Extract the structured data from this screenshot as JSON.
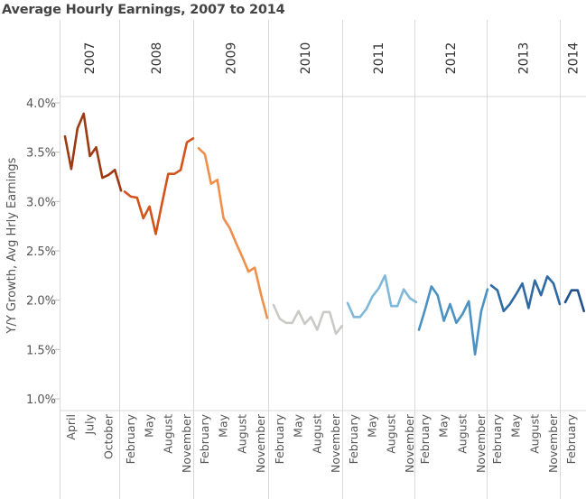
{
  "title": "Average Hourly Earnings, 2007 to 2014",
  "chart_data": {
    "type": "line",
    "title": "Average Hourly Earnings, 2007 to 2014",
    "ylabel": "Y/Y Growth, Avg Hrly Earnings",
    "xlabel": "",
    "ylim": [
      1.0,
      4.0
    ],
    "y_ticks": [
      "4.0%",
      "3.5%",
      "3.0%",
      "2.5%",
      "2.0%",
      "1.5%",
      "1.0%"
    ],
    "grid": false,
    "panels": [
      {
        "year": "2007",
        "month_labels": [
          "April",
          "July",
          "October"
        ],
        "color": "#9c3a14",
        "months": [
          "Mar",
          "Apr",
          "May",
          "Jun",
          "Jul",
          "Aug",
          "Sep",
          "Oct",
          "Nov",
          "Dec"
        ],
        "values": [
          3.66,
          3.33,
          3.74,
          3.89,
          3.46,
          3.55,
          3.24,
          3.27,
          3.32,
          3.11
        ]
      },
      {
        "year": "2008",
        "month_labels": [
          "February",
          "May",
          "August",
          "November"
        ],
        "color": "#d2531b",
        "months": [
          "Jan",
          "Feb",
          "Mar",
          "Apr",
          "May",
          "Jun",
          "Jul",
          "Aug",
          "Sep",
          "Oct",
          "Nov",
          "Dec"
        ],
        "values": [
          3.1,
          3.05,
          3.04,
          2.83,
          2.95,
          2.67,
          2.98,
          3.28,
          3.28,
          3.32,
          3.6,
          3.64
        ]
      },
      {
        "year": "2009",
        "month_labels": [
          "February",
          "May",
          "August",
          "November"
        ],
        "color": "#ef8f4b",
        "months": [
          "Jan",
          "Feb",
          "Mar",
          "Apr",
          "May",
          "Jun",
          "Jul",
          "Aug",
          "Sep",
          "Oct",
          "Nov",
          "Dec"
        ],
        "values": [
          3.54,
          3.48,
          3.18,
          3.22,
          2.83,
          2.73,
          2.58,
          2.44,
          2.29,
          2.33,
          2.06,
          1.82
        ]
      },
      {
        "year": "2010",
        "month_labels": [
          "February",
          "May",
          "August",
          "November"
        ],
        "color": "#c9c9c6",
        "months": [
          "Jan",
          "Feb",
          "Mar",
          "Apr",
          "May",
          "Jun",
          "Jul",
          "Aug",
          "Sep",
          "Oct",
          "Nov",
          "Dec"
        ],
        "values": [
          1.95,
          1.81,
          1.77,
          1.77,
          1.89,
          1.76,
          1.83,
          1.7,
          1.88,
          1.88,
          1.66,
          1.74
        ]
      },
      {
        "year": "2011",
        "month_labels": [
          "February",
          "May",
          "August",
          "November"
        ],
        "color": "#7fb8d8",
        "months": [
          "Jan",
          "Feb",
          "Mar",
          "Apr",
          "May",
          "Jun",
          "Jul",
          "Aug",
          "Sep",
          "Oct",
          "Nov",
          "Dec"
        ],
        "values": [
          1.97,
          1.83,
          1.83,
          1.91,
          2.04,
          2.12,
          2.25,
          1.94,
          1.94,
          2.11,
          2.02,
          1.98
        ]
      },
      {
        "year": "2012",
        "month_labels": [
          "February",
          "May",
          "August",
          "November"
        ],
        "color": "#4b92c3",
        "months": [
          "Jan",
          "Feb",
          "Mar",
          "Apr",
          "May",
          "Jun",
          "Jul",
          "Aug",
          "Sep",
          "Oct",
          "Nov",
          "Dec"
        ],
        "values": [
          1.7,
          1.91,
          2.14,
          2.05,
          1.79,
          1.96,
          1.77,
          1.86,
          1.99,
          1.45,
          1.89,
          2.11
        ]
      },
      {
        "year": "2013",
        "month_labels": [
          "February",
          "May",
          "August",
          "November"
        ],
        "color": "#2e6aa3",
        "months": [
          "Jan",
          "Feb",
          "Mar",
          "Apr",
          "May",
          "Jun",
          "Jul",
          "Aug",
          "Sep",
          "Oct",
          "Nov",
          "Dec"
        ],
        "values": [
          2.15,
          2.1,
          1.89,
          1.96,
          2.06,
          2.17,
          1.92,
          2.2,
          2.05,
          2.24,
          2.17,
          1.96
        ]
      },
      {
        "year": "2014",
        "month_labels": [
          "February"
        ],
        "color": "#21508b",
        "months": [
          "Jan",
          "Feb",
          "Mar",
          "Apr"
        ],
        "values": [
          1.98,
          2.1,
          2.1,
          1.89
        ]
      }
    ]
  }
}
